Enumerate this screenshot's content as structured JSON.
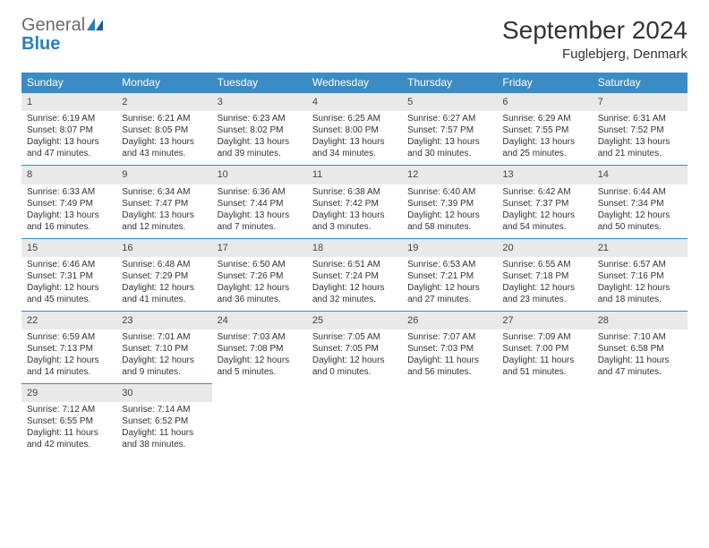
{
  "logo": {
    "general": "General",
    "blue": "Blue"
  },
  "title": "September 2024",
  "location": "Fuglebjerg, Denmark",
  "colors": {
    "header_bg": "#3b8bc4",
    "header_text": "#ffffff",
    "daynum_bg": "#e9e9e9",
    "border": "#3b8bc4",
    "logo_gray": "#6b6b6b",
    "logo_blue": "#2a7fba"
  },
  "weekdays": [
    "Sunday",
    "Monday",
    "Tuesday",
    "Wednesday",
    "Thursday",
    "Friday",
    "Saturday"
  ],
  "weeks": [
    [
      {
        "n": "1",
        "sr": "6:19 AM",
        "ss": "8:07 PM",
        "dl": "13 hours and 47 minutes."
      },
      {
        "n": "2",
        "sr": "6:21 AM",
        "ss": "8:05 PM",
        "dl": "13 hours and 43 minutes."
      },
      {
        "n": "3",
        "sr": "6:23 AM",
        "ss": "8:02 PM",
        "dl": "13 hours and 39 minutes."
      },
      {
        "n": "4",
        "sr": "6:25 AM",
        "ss": "8:00 PM",
        "dl": "13 hours and 34 minutes."
      },
      {
        "n": "5",
        "sr": "6:27 AM",
        "ss": "7:57 PM",
        "dl": "13 hours and 30 minutes."
      },
      {
        "n": "6",
        "sr": "6:29 AM",
        "ss": "7:55 PM",
        "dl": "13 hours and 25 minutes."
      },
      {
        "n": "7",
        "sr": "6:31 AM",
        "ss": "7:52 PM",
        "dl": "13 hours and 21 minutes."
      }
    ],
    [
      {
        "n": "8",
        "sr": "6:33 AM",
        "ss": "7:49 PM",
        "dl": "13 hours and 16 minutes."
      },
      {
        "n": "9",
        "sr": "6:34 AM",
        "ss": "7:47 PM",
        "dl": "13 hours and 12 minutes."
      },
      {
        "n": "10",
        "sr": "6:36 AM",
        "ss": "7:44 PM",
        "dl": "13 hours and 7 minutes."
      },
      {
        "n": "11",
        "sr": "6:38 AM",
        "ss": "7:42 PM",
        "dl": "13 hours and 3 minutes."
      },
      {
        "n": "12",
        "sr": "6:40 AM",
        "ss": "7:39 PM",
        "dl": "12 hours and 58 minutes."
      },
      {
        "n": "13",
        "sr": "6:42 AM",
        "ss": "7:37 PM",
        "dl": "12 hours and 54 minutes."
      },
      {
        "n": "14",
        "sr": "6:44 AM",
        "ss": "7:34 PM",
        "dl": "12 hours and 50 minutes."
      }
    ],
    [
      {
        "n": "15",
        "sr": "6:46 AM",
        "ss": "7:31 PM",
        "dl": "12 hours and 45 minutes."
      },
      {
        "n": "16",
        "sr": "6:48 AM",
        "ss": "7:29 PM",
        "dl": "12 hours and 41 minutes."
      },
      {
        "n": "17",
        "sr": "6:50 AM",
        "ss": "7:26 PM",
        "dl": "12 hours and 36 minutes."
      },
      {
        "n": "18",
        "sr": "6:51 AM",
        "ss": "7:24 PM",
        "dl": "12 hours and 32 minutes."
      },
      {
        "n": "19",
        "sr": "6:53 AM",
        "ss": "7:21 PM",
        "dl": "12 hours and 27 minutes."
      },
      {
        "n": "20",
        "sr": "6:55 AM",
        "ss": "7:18 PM",
        "dl": "12 hours and 23 minutes."
      },
      {
        "n": "21",
        "sr": "6:57 AM",
        "ss": "7:16 PM",
        "dl": "12 hours and 18 minutes."
      }
    ],
    [
      {
        "n": "22",
        "sr": "6:59 AM",
        "ss": "7:13 PM",
        "dl": "12 hours and 14 minutes."
      },
      {
        "n": "23",
        "sr": "7:01 AM",
        "ss": "7:10 PM",
        "dl": "12 hours and 9 minutes."
      },
      {
        "n": "24",
        "sr": "7:03 AM",
        "ss": "7:08 PM",
        "dl": "12 hours and 5 minutes."
      },
      {
        "n": "25",
        "sr": "7:05 AM",
        "ss": "7:05 PM",
        "dl": "12 hours and 0 minutes."
      },
      {
        "n": "26",
        "sr": "7:07 AM",
        "ss": "7:03 PM",
        "dl": "11 hours and 56 minutes."
      },
      {
        "n": "27",
        "sr": "7:09 AM",
        "ss": "7:00 PM",
        "dl": "11 hours and 51 minutes."
      },
      {
        "n": "28",
        "sr": "7:10 AM",
        "ss": "6:58 PM",
        "dl": "11 hours and 47 minutes."
      }
    ],
    [
      {
        "n": "29",
        "sr": "7:12 AM",
        "ss": "6:55 PM",
        "dl": "11 hours and 42 minutes."
      },
      {
        "n": "30",
        "sr": "7:14 AM",
        "ss": "6:52 PM",
        "dl": "11 hours and 38 minutes."
      },
      null,
      null,
      null,
      null,
      null
    ]
  ]
}
